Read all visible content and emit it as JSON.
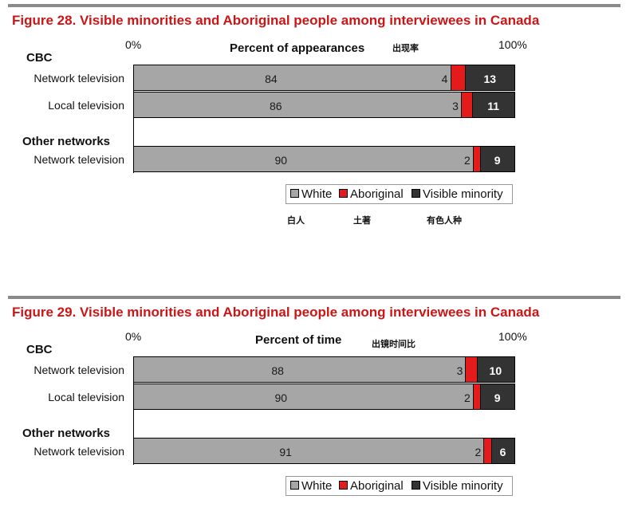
{
  "figures": [
    {
      "title": "Figure 28. Visible minorities and Aboriginal people among interviewees in Canada",
      "axis_min_label": "0%",
      "axis_max_label": "100%",
      "axis_title": "Percent of  appearances",
      "axis_note": "出现率",
      "groups": [
        {
          "label": "CBC",
          "rows": [
            {
              "label": "Network television",
              "values": [
                84,
                4,
                13
              ]
            },
            {
              "label": "Local television",
              "values": [
                86,
                3,
                11
              ]
            }
          ]
        },
        {
          "label": "Other networks",
          "rows": [
            {
              "label": "Network television",
              "values": [
                90,
                2,
                9
              ]
            }
          ]
        }
      ],
      "legend": [
        "White",
        "Aboriginal",
        "Visible minority"
      ],
      "legend_notes": [
        "白人",
        "土著",
        "有色人种"
      ]
    },
    {
      "title": "Figure 29. Visible minorities and Aboriginal people among interviewees in Canada",
      "axis_min_label": "0%",
      "axis_max_label": "100%",
      "axis_title": "Percent of  time",
      "axis_note": "出镜时间比",
      "groups": [
        {
          "label": "CBC",
          "rows": [
            {
              "label": "Network television",
              "values": [
                88,
                3,
                10
              ]
            },
            {
              "label": "Local television",
              "values": [
                90,
                2,
                9
              ]
            }
          ]
        },
        {
          "label": "Other networks",
          "rows": [
            {
              "label": "Network television",
              "values": [
                91,
                2,
                6
              ]
            }
          ]
        }
      ],
      "legend": [
        "White",
        "Aboriginal",
        "Visible minority"
      ],
      "legend_notes": []
    }
  ],
  "colors": {
    "white": "#a6a6a6",
    "aboriginal": "#e31b1b",
    "visible_minority": "#333333",
    "title": "#cc1616"
  },
  "chart_data": [
    {
      "type": "bar",
      "orientation": "horizontal",
      "stacked": true,
      "title": "Figure 28. Visible minorities and Aboriginal people among interviewees in Canada",
      "xlabel": "Percent of  appearances",
      "xlim": [
        0,
        100
      ],
      "categories": [
        "CBC Network television",
        "CBC Local television",
        "Other networks Network television"
      ],
      "series": [
        {
          "name": "White",
          "values": [
            84,
            86,
            90
          ]
        },
        {
          "name": "Aboriginal",
          "values": [
            4,
            3,
            2
          ]
        },
        {
          "name": "Visible minority",
          "values": [
            13,
            11,
            9
          ]
        }
      ],
      "legend": "bottom-right"
    },
    {
      "type": "bar",
      "orientation": "horizontal",
      "stacked": true,
      "title": "Figure 29. Visible minorities and Aboriginal people among interviewees in Canada",
      "xlabel": "Percent of  time",
      "xlim": [
        0,
        100
      ],
      "categories": [
        "CBC Network television",
        "CBC Local television",
        "Other networks Network television"
      ],
      "series": [
        {
          "name": "White",
          "values": [
            88,
            90,
            91
          ]
        },
        {
          "name": "Aboriginal",
          "values": [
            3,
            2,
            2
          ]
        },
        {
          "name": "Visible minority",
          "values": [
            10,
            9,
            6
          ]
        }
      ],
      "legend": "bottom-right"
    }
  ]
}
